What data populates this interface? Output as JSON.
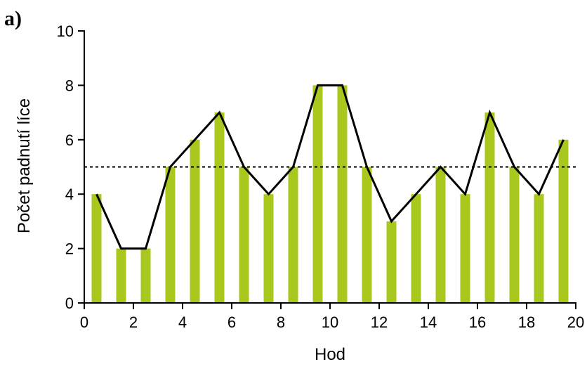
{
  "chart_data": {
    "type": "bar",
    "panel_label": "a)",
    "title": "",
    "xlabel": "Hod",
    "ylabel": "Počet padnutí líce",
    "xlim": [
      0,
      20
    ],
    "ylim": [
      0,
      10
    ],
    "xticks": [
      0,
      2,
      4,
      6,
      8,
      10,
      12,
      14,
      16,
      18,
      20
    ],
    "yticks": [
      0,
      2,
      4,
      6,
      8,
      10
    ],
    "grid": false,
    "bar_color": "#a8c81e",
    "line_color": "#000000",
    "reference_line": {
      "y": 5,
      "style": "dotted",
      "color": "#000000"
    },
    "x": [
      0.5,
      1.5,
      2.5,
      3.5,
      4.5,
      5.5,
      6.5,
      7.5,
      8.5,
      9.5,
      10.5,
      11.5,
      12.5,
      13.5,
      14.5,
      15.5,
      16.5,
      17.5,
      18.5,
      19.5
    ],
    "values": [
      4,
      2,
      2,
      5,
      6,
      7,
      5,
      4,
      5,
      8,
      8,
      5,
      3,
      4,
      5,
      4,
      7,
      5,
      4,
      6
    ]
  }
}
